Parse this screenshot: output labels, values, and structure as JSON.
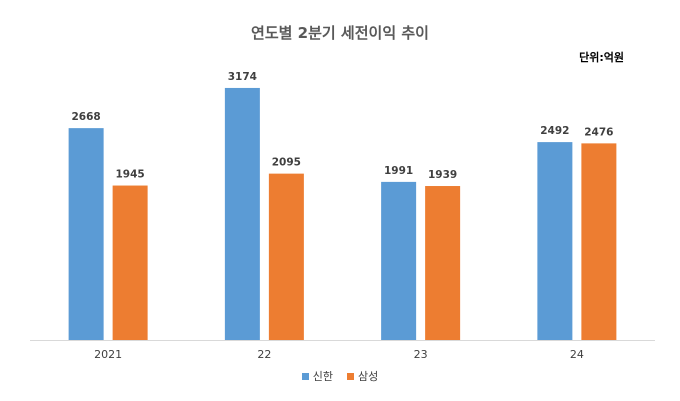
{
  "chart_data": {
    "type": "bar",
    "title": "연도별 2분기 세전이익 추이",
    "unit_note": "단위:억원",
    "categories": [
      "2021",
      "22",
      "23",
      "24"
    ],
    "series": [
      {
        "name": "신한",
        "color": "#5B9BD5",
        "values": [
          2668,
          3174,
          1991,
          2492
        ]
      },
      {
        "name": "삼성",
        "color": "#ED7D31",
        "values": [
          1945,
          2095,
          1939,
          2476
        ]
      }
    ],
    "ylim": [
      0,
      3400
    ],
    "grid": false,
    "legend_position": "bottom",
    "data_labels": true
  }
}
